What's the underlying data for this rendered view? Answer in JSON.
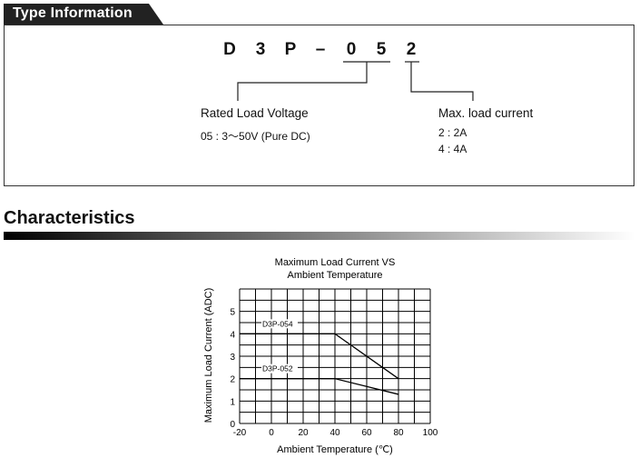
{
  "type_info": {
    "heading": "Type Information",
    "model_code": [
      "D",
      "3",
      "P",
      "–",
      "0",
      "5",
      "2"
    ],
    "rated_load_voltage": {
      "title": "Rated Load Voltage",
      "line": "05 : 3～50V (Pure DC)"
    },
    "max_load_current": {
      "title": "Max. load current",
      "lines": [
        "2 : 2A",
        "4 : 4A"
      ]
    }
  },
  "characteristics": {
    "heading": "Characteristics"
  },
  "colors": {
    "tab_bg": "#222222",
    "grid": "#000000",
    "series_line": "#000000"
  },
  "chart_data": {
    "type": "line",
    "title_lines": [
      "Maximum Load Current VS",
      "Ambient Temperature"
    ],
    "xlabel": "Ambient Temperature (℃)",
    "ylabel": "Maximum Load Current (ADC)",
    "xlim": [
      -20,
      100
    ],
    "ylim": [
      0,
      6
    ],
    "xticks": [
      -20,
      0,
      20,
      40,
      60,
      80,
      100
    ],
    "yticks": [
      0,
      1,
      2,
      3,
      4,
      5
    ],
    "grid": true,
    "series": [
      {
        "name": "D3P-054",
        "x": [
          -20,
          40,
          80
        ],
        "y": [
          4,
          4,
          2
        ]
      },
      {
        "name": "D3P-052",
        "x": [
          -20,
          40,
          80
        ],
        "y": [
          2,
          2,
          1.3
        ]
      }
    ]
  }
}
